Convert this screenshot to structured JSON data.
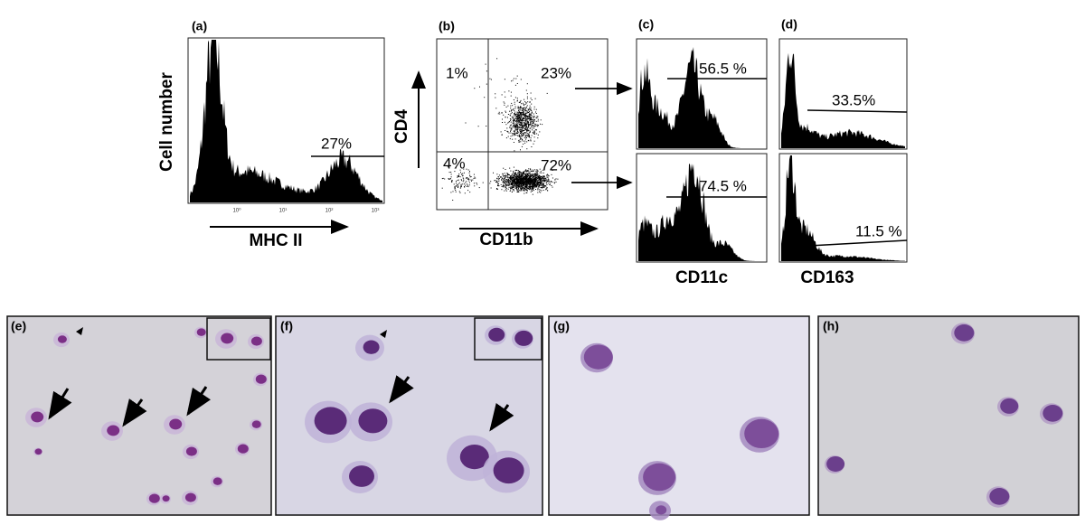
{
  "panels": {
    "a": {
      "label": "(a)",
      "y_axis": "Cell number",
      "x_axis": "MHC II",
      "gate": "27%",
      "ticks": [
        "10⁰",
        "10¹",
        "10²",
        "10³"
      ]
    },
    "b": {
      "label": "(b)",
      "y_axis": "CD4",
      "x_axis": "CD11b",
      "quadrants": [
        "1%",
        "23%",
        "4%",
        "72%"
      ]
    },
    "c": {
      "label": "(c)",
      "x_axis": "CD11c",
      "gates": [
        "56.5 %",
        "74.5 %"
      ]
    },
    "d": {
      "label": "(d)",
      "x_axis": "CD163",
      "gates": [
        "33.5%",
        "11.5 %"
      ]
    },
    "e": {
      "label": "(e)"
    },
    "f": {
      "label": "(f)"
    },
    "g": {
      "label": "(g)"
    },
    "h": {
      "label": "(h)"
    }
  }
}
